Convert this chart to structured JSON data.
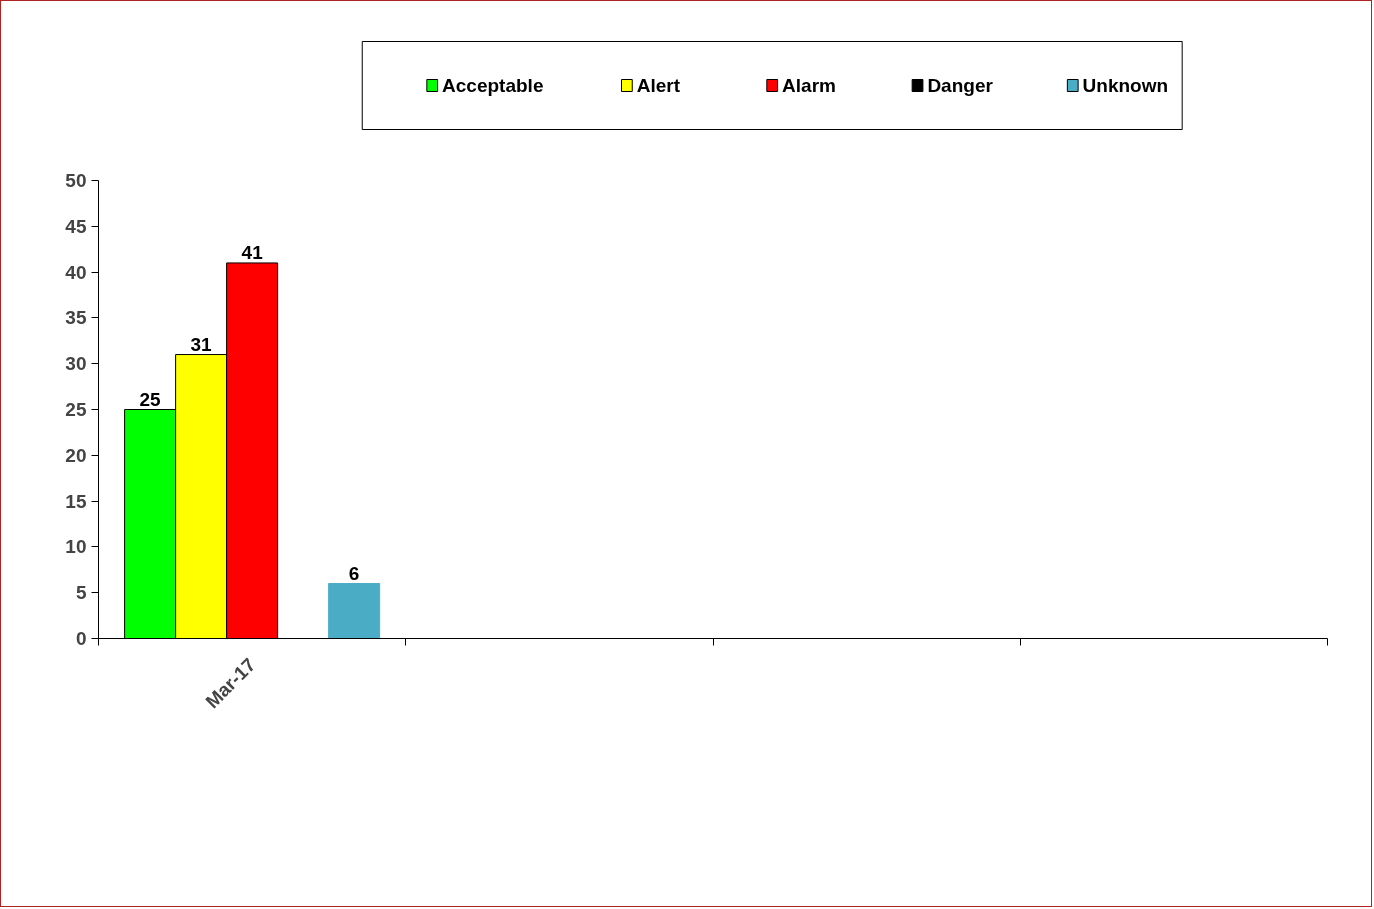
{
  "chart_data": {
    "type": "bar",
    "categories": [
      "Mar-17",
      null,
      null,
      null
    ],
    "series": [
      {
        "name": "Acceptable",
        "color": "#00ff00",
        "values": [
          25,
          null,
          null,
          null
        ],
        "value_labels": [
          "25",
          null,
          null,
          null
        ]
      },
      {
        "name": "Alert",
        "color": "#ffff00",
        "values": [
          31,
          null,
          null,
          null
        ],
        "value_labels": [
          "31",
          null,
          null,
          null
        ]
      },
      {
        "name": "Alarm",
        "color": "#ff0000",
        "values": [
          41,
          null,
          null,
          null
        ],
        "value_labels": [
          "41",
          null,
          null,
          null
        ]
      },
      {
        "name": "Danger",
        "color": "#000000",
        "values": [
          0,
          null,
          null,
          null
        ],
        "value_labels": [
          null,
          null,
          null,
          null
        ]
      },
      {
        "name": "Unknown",
        "color": "#4bacc6",
        "values": [
          6,
          null,
          null,
          null
        ],
        "value_labels": [
          "6",
          null,
          null,
          null
        ]
      }
    ],
    "ylim": [
      0,
      50
    ],
    "yticks": [
      0,
      5,
      10,
      15,
      20,
      25,
      30,
      35,
      40,
      45,
      50
    ],
    "grid": false,
    "legend": "top"
  }
}
